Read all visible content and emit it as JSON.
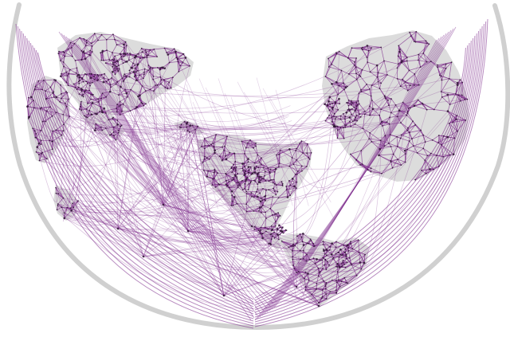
{
  "map": {
    "projection": "conic-ring",
    "colors": {
      "background": "#ffffff",
      "land": "#d7d7d7",
      "frame": "#c9c9c9",
      "edge": "#7d2a8b",
      "node": "#2b1630"
    },
    "visible_regions": [
      "asia",
      "australia",
      "africa",
      "europe",
      "north-america",
      "south-america",
      "pacific-islands"
    ],
    "graph": {
      "style": "dense-delaunay-like-mesh",
      "long_arcs": true,
      "clusters": true
    }
  }
}
